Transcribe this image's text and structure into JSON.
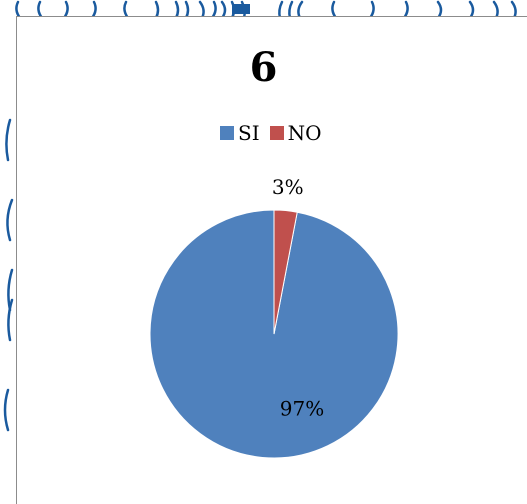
{
  "chart_data": {
    "type": "pie",
    "title": "6",
    "categories": [
      "SI",
      "NO"
    ],
    "values": [
      97,
      3
    ],
    "data_labels": [
      "97%",
      "3%"
    ],
    "colors": [
      "#4F81BD",
      "#C0504D"
    ],
    "legend_position": "top"
  },
  "colors": {
    "border": "#8c8c8c",
    "decoration": "#1a5a9e"
  }
}
